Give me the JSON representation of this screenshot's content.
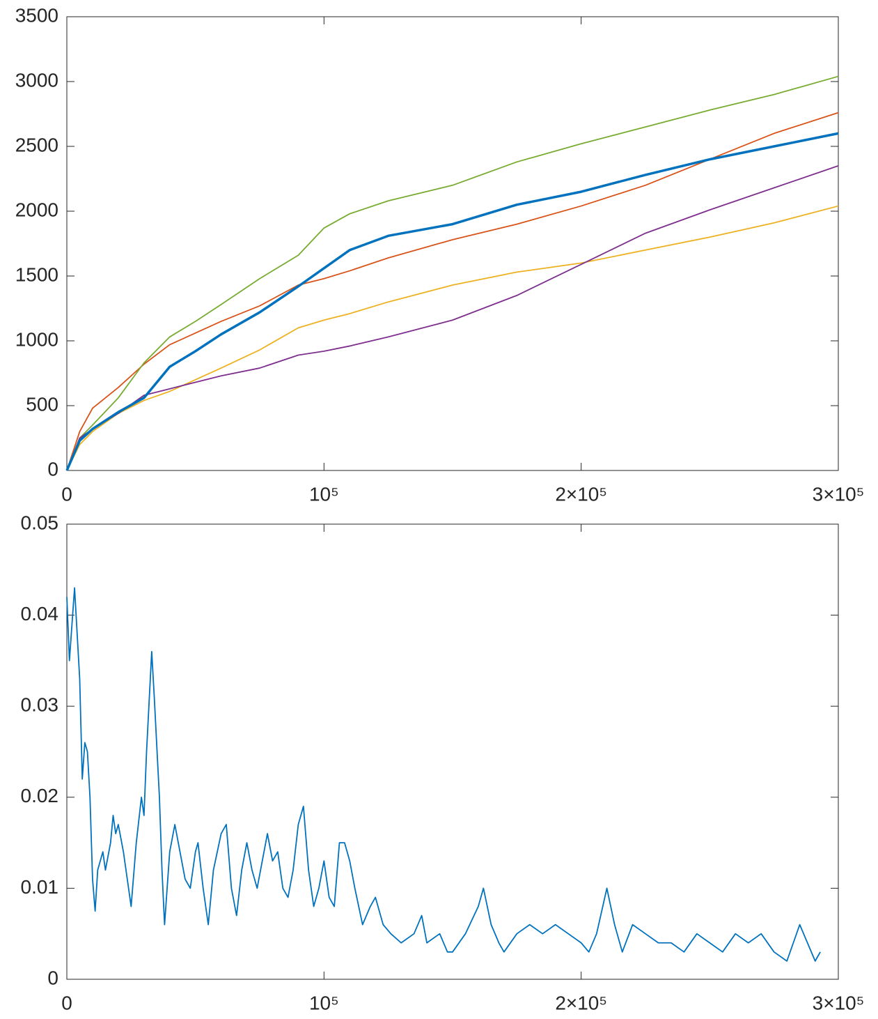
{
  "chart_data": [
    {
      "type": "line",
      "x": [
        0,
        5000,
        10000,
        20000,
        30000,
        40000,
        50000,
        60000,
        75000,
        90000,
        100000,
        110000,
        125000,
        150000,
        175000,
        200000,
        225000,
        250000,
        275000,
        300000
      ],
      "series": [
        {
          "color": "#D95319",
          "values": [
            0,
            300,
            480,
            640,
            820,
            970,
            1060,
            1150,
            1270,
            1430,
            1480,
            1540,
            1640,
            1780,
            1900,
            2040,
            2200,
            2400,
            2600,
            2760
          ]
        },
        {
          "color": "#77AC30",
          "values": [
            0,
            250,
            350,
            560,
            830,
            1030,
            1150,
            1280,
            1480,
            1660,
            1870,
            1980,
            2080,
            2200,
            2380,
            2520,
            2650,
            2780,
            2900,
            3040
          ]
        },
        {
          "color": "#EDB120",
          "values": [
            0,
            200,
            300,
            440,
            540,
            610,
            700,
            790,
            930,
            1100,
            1160,
            1210,
            1300,
            1430,
            1530,
            1600,
            1700,
            1800,
            1910,
            2040
          ]
        },
        {
          "color": "#7E2F8E",
          "values": [
            0,
            250,
            320,
            440,
            580,
            630,
            680,
            730,
            790,
            890,
            920,
            960,
            1030,
            1160,
            1350,
            1590,
            1830,
            2010,
            2180,
            2350
          ]
        },
        {
          "color": "#0072BD",
          "values": [
            0,
            230,
            320,
            450,
            560,
            800,
            920,
            1050,
            1220,
            1420,
            1560,
            1700,
            1810,
            1900,
            2050,
            2150,
            2280,
            2400,
            2500,
            2600
          ]
        }
      ],
      "xlim": [
        0,
        300000
      ],
      "xticks": [
        0,
        {
          "value": 100000,
          "label": "10⁵"
        },
        {
          "value": 200000,
          "label": "2×10⁵"
        },
        {
          "value": 300000,
          "label": "3×10⁵"
        }
      ],
      "ylim": [
        0,
        3500
      ],
      "yticks": [
        0,
        500,
        1000,
        1500,
        2000,
        2500,
        3000,
        3500
      ]
    },
    {
      "type": "line",
      "x": [
        0,
        1000,
        3000,
        5000,
        6000,
        7000,
        8000,
        9000,
        10000,
        11000,
        12000,
        14000,
        15000,
        17000,
        18000,
        19000,
        20000,
        22000,
        24000,
        25000,
        27000,
        29000,
        30000,
        31000,
        33000,
        34000,
        36000,
        37000,
        38000,
        40000,
        42000,
        44000,
        46000,
        48000,
        50000,
        51000,
        53000,
        55000,
        57000,
        60000,
        62000,
        64000,
        66000,
        68000,
        70000,
        72000,
        74000,
        76000,
        78000,
        80000,
        82000,
        84000,
        86000,
        88000,
        90000,
        92000,
        94000,
        96000,
        98000,
        100000,
        102000,
        104000,
        106000,
        108000,
        110000,
        112000,
        115000,
        118000,
        120000,
        123000,
        126000,
        130000,
        135000,
        138000,
        140000,
        145000,
        148000,
        150000,
        155000,
        160000,
        162000,
        165000,
        168000,
        170000,
        175000,
        180000,
        185000,
        190000,
        195000,
        200000,
        203000,
        206000,
        210000,
        213000,
        216000,
        220000,
        225000,
        230000,
        235000,
        240000,
        245000,
        250000,
        255000,
        260000,
        265000,
        270000,
        275000,
        280000,
        285000,
        288000,
        291000,
        293000
      ],
      "series": [
        {
          "color": "#0072BD",
          "values": [
            0.042,
            0.035,
            0.043,
            0.033,
            0.022,
            0.026,
            0.025,
            0.02,
            0.011,
            0.0075,
            0.012,
            0.014,
            0.012,
            0.015,
            0.018,
            0.016,
            0.017,
            0.014,
            0.01,
            0.008,
            0.015,
            0.02,
            0.018,
            0.025,
            0.036,
            0.031,
            0.02,
            0.012,
            0.006,
            0.014,
            0.017,
            0.014,
            0.011,
            0.01,
            0.014,
            0.015,
            0.01,
            0.006,
            0.012,
            0.016,
            0.017,
            0.01,
            0.007,
            0.012,
            0.015,
            0.012,
            0.01,
            0.013,
            0.016,
            0.013,
            0.014,
            0.01,
            0.009,
            0.012,
            0.017,
            0.019,
            0.012,
            0.008,
            0.01,
            0.013,
            0.009,
            0.008,
            0.015,
            0.015,
            0.013,
            0.01,
            0.006,
            0.008,
            0.009,
            0.006,
            0.005,
            0.004,
            0.005,
            0.007,
            0.004,
            0.005,
            0.003,
            0.003,
            0.005,
            0.008,
            0.01,
            0.006,
            0.004,
            0.003,
            0.005,
            0.006,
            0.005,
            0.006,
            0.005,
            0.004,
            0.003,
            0.005,
            0.01,
            0.006,
            0.003,
            0.006,
            0.005,
            0.004,
            0.004,
            0.003,
            0.005,
            0.004,
            0.003,
            0.005,
            0.004,
            0.005,
            0.003,
            0.002,
            0.006,
            0.004,
            0.002,
            0.003
          ]
        }
      ],
      "xlim": [
        0,
        300000
      ],
      "xticks": [
        0,
        {
          "value": 100000,
          "label": "10⁵"
        },
        {
          "value": 200000,
          "label": "2×10⁵"
        },
        {
          "value": 300000,
          "label": "3×10⁵"
        }
      ],
      "ylim": [
        0,
        0.05
      ],
      "yticks": [
        0,
        0.01,
        0.02,
        0.03,
        0.04,
        0.05
      ]
    }
  ]
}
